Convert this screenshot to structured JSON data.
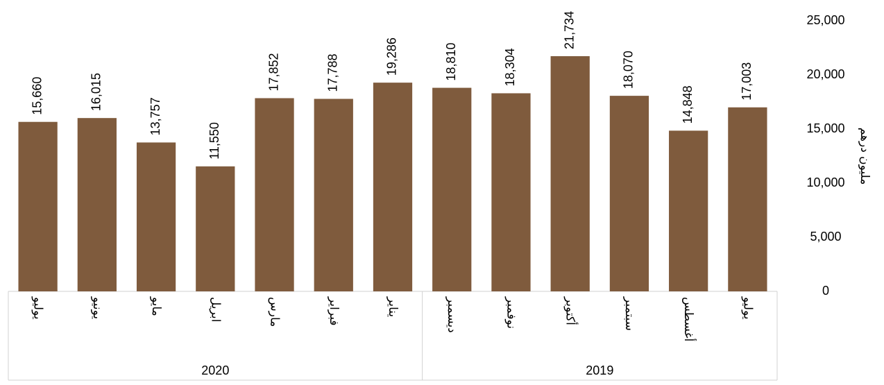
{
  "chart_data": {
    "type": "bar",
    "categories": [
      "يوليو",
      "يونيو",
      "مايو",
      "ابريل",
      "مارس",
      "فبراير",
      "يناير",
      "ديسمبر",
      "نوفمبر",
      "أكتوبر",
      "سبتمبر",
      "أغسطس",
      "يوليو"
    ],
    "groups": [
      {
        "name": "2020",
        "size": 7
      },
      {
        "name": "2019",
        "size": 6
      }
    ],
    "values": [
      15660,
      16015,
      13757,
      11550,
      17852,
      17788,
      19286,
      18810,
      18304,
      21734,
      18070,
      14848,
      17003
    ],
    "value_labels": [
      "15,660",
      "16,015",
      "13,757",
      "11,550",
      "17,852",
      "17,788",
      "19,286",
      "18,810",
      "18,304",
      "21,734",
      "18,070",
      "14,848",
      "17,003"
    ],
    "color": "#7f5b3d",
    "y_axis_label": "مليون درهم",
    "y_axis_side": "right",
    "ylim": [
      0,
      25000
    ],
    "yticks": [
      0,
      {
        "value": 5000,
        "label": "5,000"
      },
      {
        "value": 10000,
        "label": "10,000"
      },
      {
        "value": 15000,
        "label": "15,000"
      },
      {
        "value": 20000,
        "label": "20,000"
      },
      {
        "value": 25000,
        "label": "25,000"
      }
    ],
    "grid": false
  }
}
